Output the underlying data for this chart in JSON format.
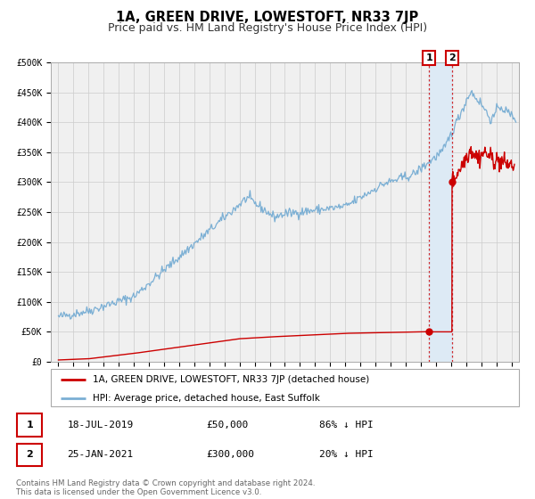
{
  "title": "1A, GREEN DRIVE, LOWESTOFT, NR33 7JP",
  "subtitle": "Price paid vs. HM Land Registry's House Price Index (HPI)",
  "ylim": [
    0,
    500000
  ],
  "xlim_start": 1994.5,
  "xlim_end": 2025.5,
  "hpi_color": "#7bafd4",
  "hpi_fill_color": "#ddeaf5",
  "price_color": "#cc0000",
  "background_color": "#f0f0f0",
  "grid_color": "#cccccc",
  "vline1_x": 2019.54,
  "vline2_x": 2021.07,
  "point1_x": 2019.54,
  "point1_y": 50000,
  "point2_x": 2021.07,
  "point2_y": 300000,
  "legend_label_red": "1A, GREEN DRIVE, LOWESTOFT, NR33 7JP (detached house)",
  "legend_label_blue": "HPI: Average price, detached house, East Suffolk",
  "table_row1": [
    "1",
    "18-JUL-2019",
    "£50,000",
    "86% ↓ HPI"
  ],
  "table_row2": [
    "2",
    "25-JAN-2021",
    "£300,000",
    "20% ↓ HPI"
  ],
  "footnote": "Contains HM Land Registry data © Crown copyright and database right 2024.\nThis data is licensed under the Open Government Licence v3.0.",
  "title_fontsize": 10.5,
  "subtitle_fontsize": 9,
  "tick_fontsize": 7,
  "legend_fontsize": 7.5,
  "table_fontsize": 8,
  "footnote_fontsize": 6.2
}
